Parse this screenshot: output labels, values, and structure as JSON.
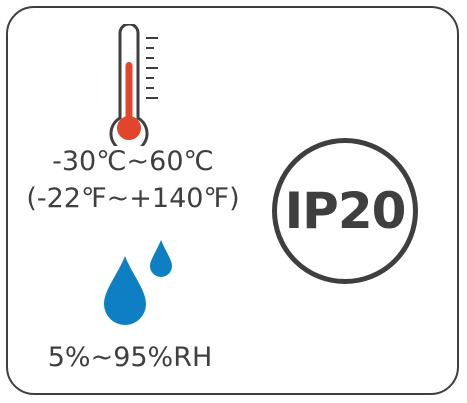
{
  "specs": {
    "temperature_celsius": "-30℃~60℃",
    "temperature_fahrenheit": "(-22℉~+140℉)",
    "humidity": "5%~95%RH",
    "ip_rating": "IP20"
  },
  "icons": {
    "thermometer": "thermometer-icon",
    "water_drops": "water-drops-icon"
  },
  "colors": {
    "outline": "#3f3f3f",
    "mercury": "#e2452b",
    "water": "#0f7fc4"
  }
}
